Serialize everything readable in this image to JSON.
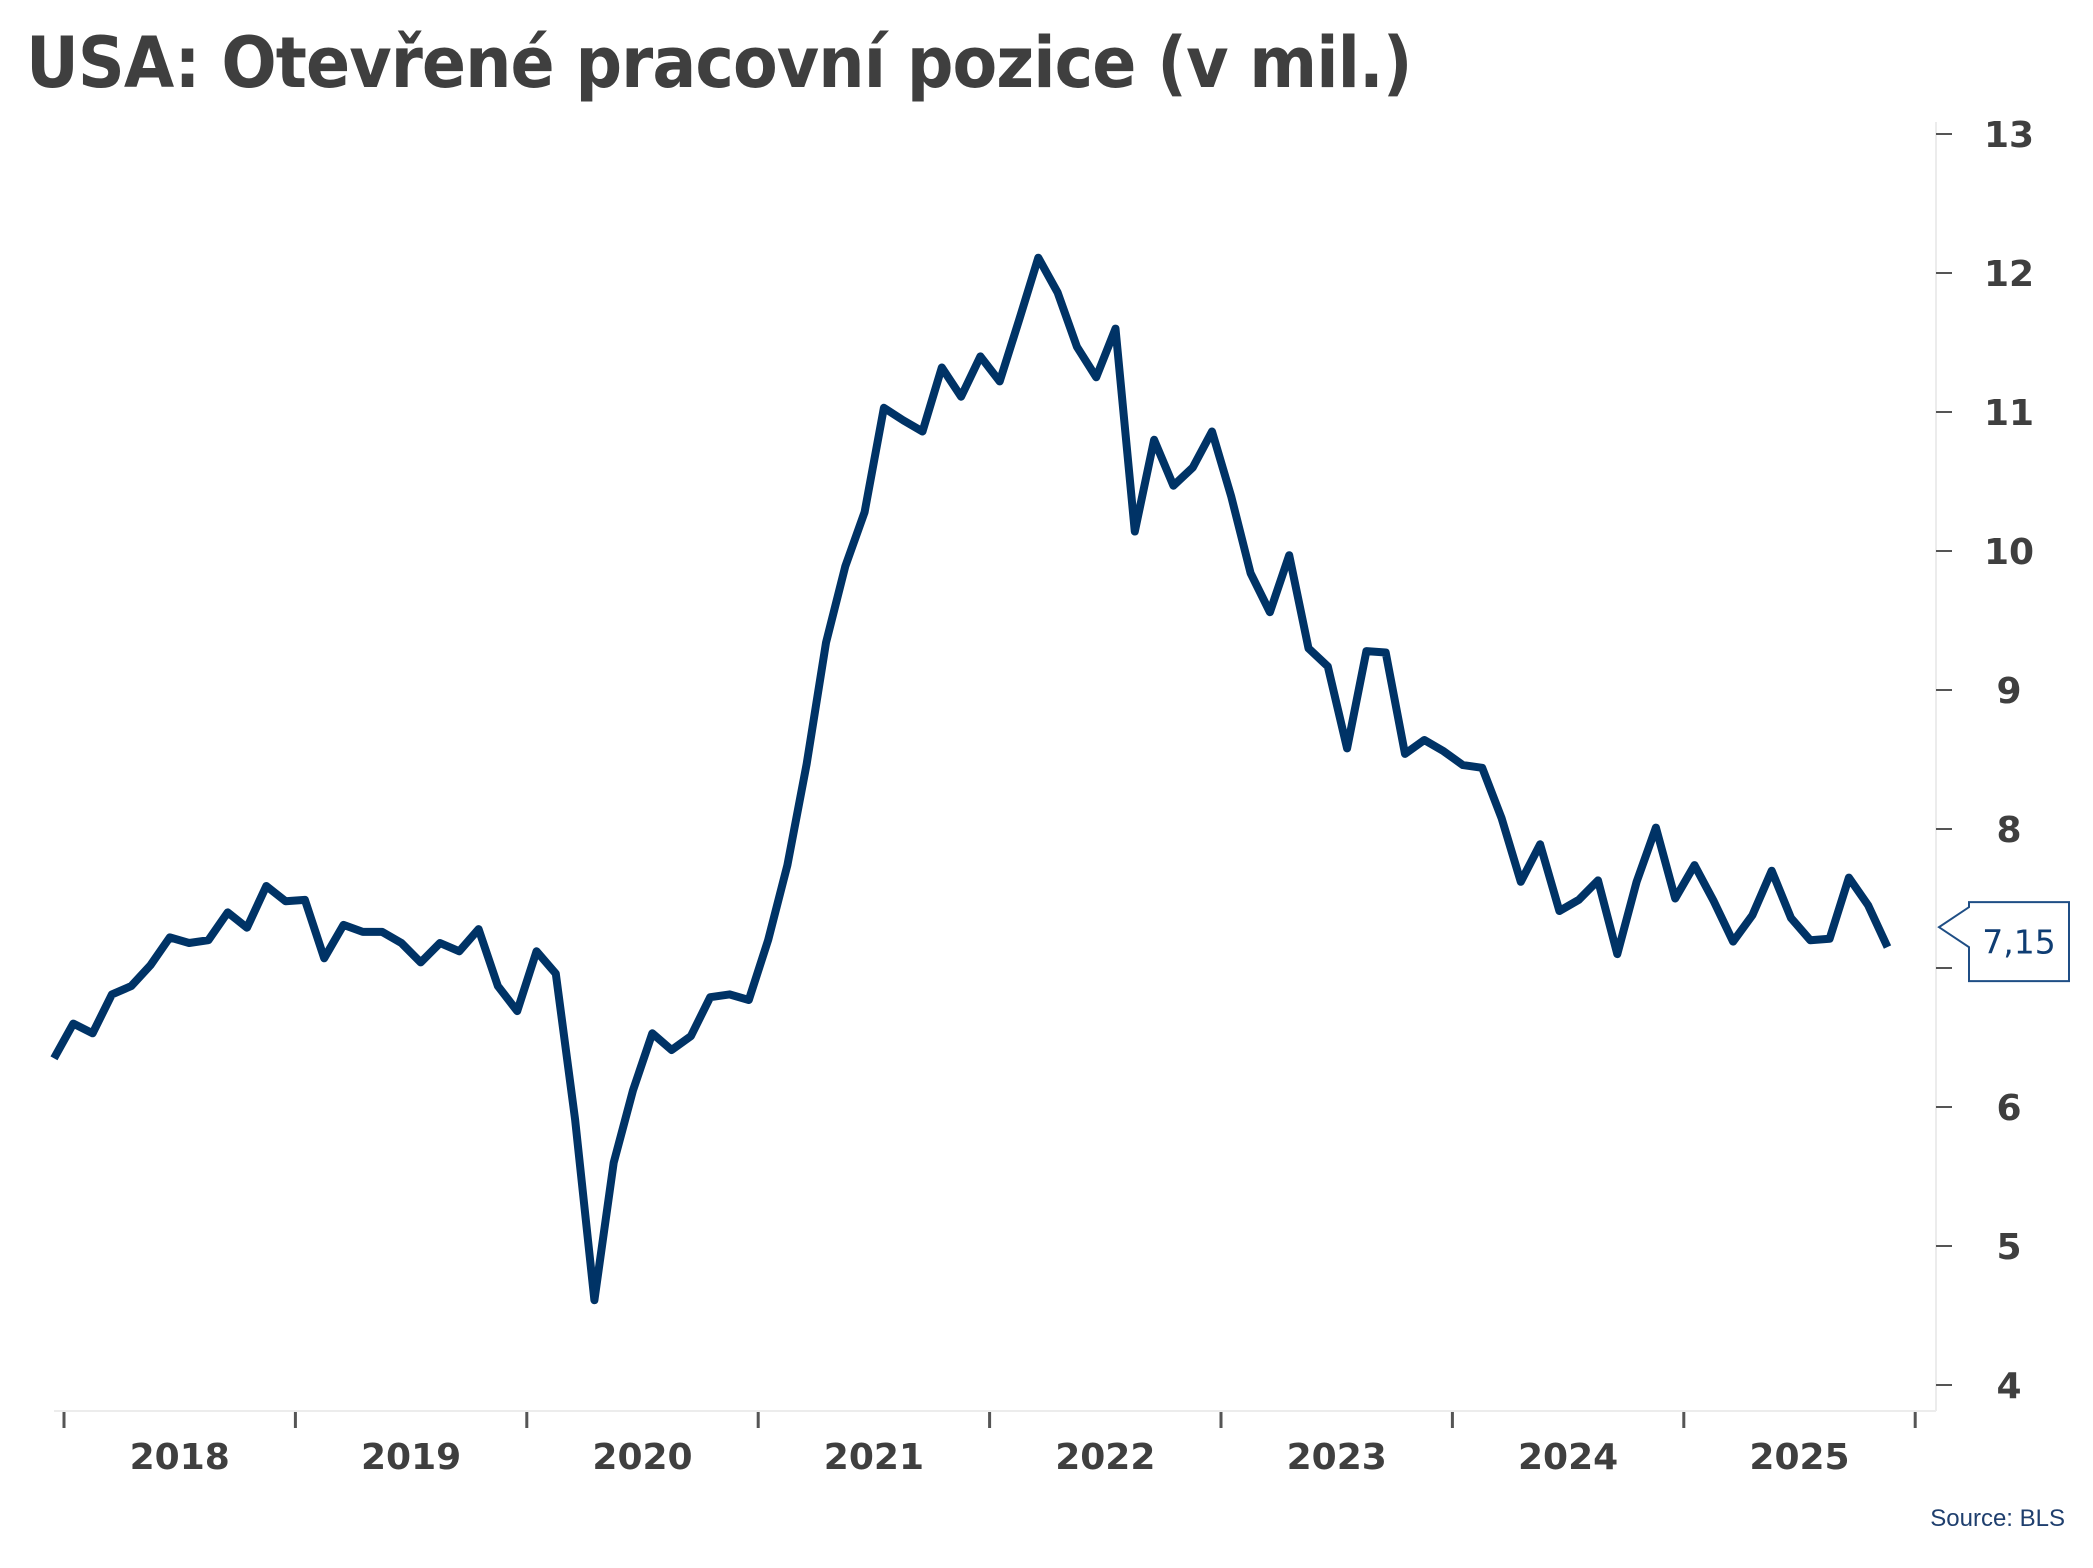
{
  "title": "USA: Otevřené pracovní pozice (v mil.)",
  "source": "Source: BLS",
  "last_value_label": "7,15",
  "colors": {
    "line": "#003366",
    "text": "#3f3f3f",
    "callout": "#0f3d73",
    "axis": "#e6e6e6"
  },
  "chart_data": {
    "type": "line",
    "title": "USA: Otevřené pracovní pozice (v mil.)",
    "xlabel": "",
    "ylabel": "",
    "ylim": [
      4,
      13
    ],
    "yticks": [
      13,
      12,
      11,
      10,
      9,
      8,
      7,
      6,
      5,
      4
    ],
    "xticks": [
      "2018",
      "2019",
      "2020",
      "2021",
      "2022",
      "2023",
      "2024",
      "2025"
    ],
    "y_axis_position": "right",
    "grid": false,
    "legend": null,
    "annotation": {
      "text": "7,15",
      "value": 7.15,
      "position": "last point, right axis"
    },
    "series": [
      {
        "name": "Otevřené pracovní pozice",
        "frequency": "monthly",
        "start": "2017-12",
        "values": [
          6.35,
          6.6,
          6.53,
          6.81,
          6.87,
          7.02,
          7.22,
          7.18,
          7.2,
          7.4,
          7.29,
          7.59,
          7.48,
          7.49,
          7.07,
          7.31,
          7.26,
          7.26,
          7.18,
          7.04,
          7.18,
          7.12,
          7.28,
          6.87,
          6.69,
          7.12,
          6.96,
          5.91,
          4.61,
          5.6,
          6.12,
          6.53,
          6.41,
          6.51,
          6.79,
          6.81,
          6.77,
          7.2,
          7.74,
          8.47,
          9.34,
          9.89,
          10.28,
          11.03,
          10.94,
          10.86,
          11.32,
          11.11,
          11.4,
          11.22,
          11.66,
          12.11,
          11.86,
          11.47,
          11.25,
          11.6,
          10.14,
          10.8,
          10.47,
          10.6,
          10.86,
          10.39,
          9.84,
          9.56,
          9.97,
          9.3,
          9.17,
          8.58,
          9.28,
          9.27,
          8.54,
          8.64,
          8.56,
          8.46,
          8.44,
          8.08,
          7.62,
          7.89,
          7.41,
          7.49,
          7.63,
          7.1,
          7.62,
          8.01,
          7.5,
          7.74,
          7.48,
          7.19,
          7.38,
          7.7,
          7.36,
          7.2,
          7.21,
          7.65,
          7.45,
          7.15
        ]
      }
    ]
  }
}
